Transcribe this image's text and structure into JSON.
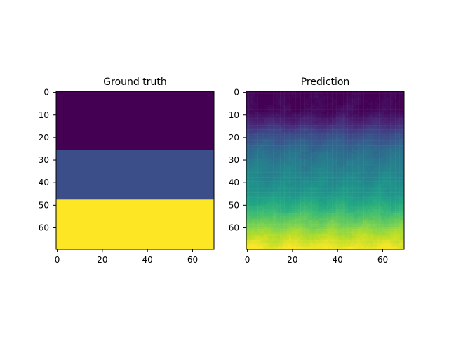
{
  "chart_data": [
    {
      "type": "heatmap",
      "title": "Ground truth",
      "colormap": "viridis",
      "xlim": [
        -0.5,
        69.5
      ],
      "ylim": [
        69.5,
        -0.5
      ],
      "xticks": [
        0,
        20,
        40,
        60
      ],
      "yticks": [
        0,
        10,
        20,
        30,
        40,
        50,
        60
      ],
      "xtick_labels": [
        "0",
        "20",
        "40",
        "60"
      ],
      "ytick_labels": [
        "0",
        "10",
        "20",
        "30",
        "40",
        "50",
        "60"
      ],
      "rows": 70,
      "cols": 70,
      "bands": [
        {
          "row_start": 0,
          "row_end": 26,
          "value": 0.0
        },
        {
          "row_start": 26,
          "row_end": 48,
          "value": 0.24
        },
        {
          "row_start": 48,
          "row_end": 70,
          "value": 1.0
        }
      ]
    },
    {
      "type": "heatmap",
      "title": "Prediction",
      "colormap": "viridis",
      "xlim": [
        -0.5,
        69.5
      ],
      "ylim": [
        69.5,
        -0.5
      ],
      "xticks": [
        0,
        20,
        40,
        60
      ],
      "yticks": [
        0,
        10,
        20,
        30,
        40,
        50,
        60
      ],
      "xtick_labels": [
        "0",
        "20",
        "40",
        "60"
      ],
      "ytick_labels": [
        "0",
        "10",
        "20",
        "30",
        "40",
        "50",
        "60"
      ],
      "rows": 70,
      "cols": 70,
      "row_profile": [
        {
          "row": 0,
          "value": 0.0
        },
        {
          "row": 8,
          "value": 0.02
        },
        {
          "row": 14,
          "value": 0.12
        },
        {
          "row": 20,
          "value": 0.26
        },
        {
          "row": 26,
          "value": 0.36
        },
        {
          "row": 32,
          "value": 0.42
        },
        {
          "row": 38,
          "value": 0.47
        },
        {
          "row": 44,
          "value": 0.52
        },
        {
          "row": 50,
          "value": 0.62
        },
        {
          "row": 56,
          "value": 0.74
        },
        {
          "row": 62,
          "value": 0.86
        },
        {
          "row": 66,
          "value": 0.93
        },
        {
          "row": 69,
          "value": 0.98
        }
      ]
    }
  ]
}
